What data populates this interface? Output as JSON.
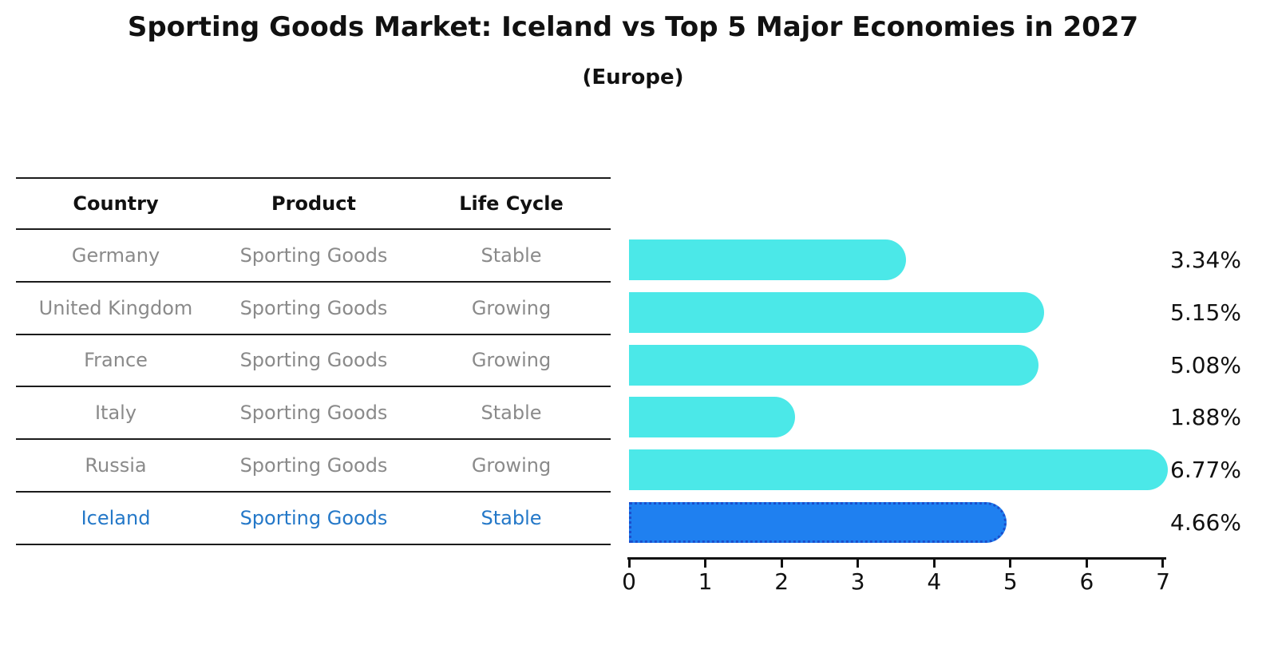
{
  "header": {
    "title": "Sporting Goods Market: Iceland vs Top 5 Major Economies in 2027",
    "subtitle": "(Europe)"
  },
  "table": {
    "headers": {
      "country": "Country",
      "product": "Product",
      "life_cycle": "Life Cycle"
    },
    "rows": [
      {
        "country": "Germany",
        "product": "Sporting Goods",
        "life_cycle": "Stable",
        "share_label": "3.34%",
        "highlight": false
      },
      {
        "country": "United Kingdom",
        "product": "Sporting Goods",
        "life_cycle": "Growing",
        "share_label": "5.15%",
        "highlight": false
      },
      {
        "country": "France",
        "product": "Sporting Goods",
        "life_cycle": "Growing",
        "share_label": "5.08%",
        "highlight": false
      },
      {
        "country": "Italy",
        "product": "Sporting Goods",
        "life_cycle": "Stable",
        "share_label": "1.88%",
        "highlight": false
      },
      {
        "country": "Russia",
        "product": "Sporting Goods",
        "life_cycle": "Growing",
        "share_label": "6.77%",
        "highlight": false
      },
      {
        "country": "Iceland",
        "product": "Sporting Goods",
        "life_cycle": "Stable",
        "share_label": "4.66%",
        "highlight": true
      }
    ]
  },
  "chart_data": {
    "type": "bar",
    "orientation": "horizontal",
    "title": "Sporting Goods Market: Iceland vs Top 5 Major Economies in 2027 (Europe)",
    "categories": [
      "Germany",
      "United Kingdom",
      "France",
      "Italy",
      "Russia",
      "Iceland"
    ],
    "values": [
      3.34,
      5.15,
      5.08,
      1.88,
      6.77,
      4.66
    ],
    "value_labels": [
      "3.34%",
      "5.15%",
      "5.08%",
      "1.88%",
      "6.77%",
      "4.66%"
    ],
    "xlabel": "",
    "ylabel": "",
    "xlim": [
      0,
      7
    ],
    "x_ticks": [
      0,
      1,
      2,
      3,
      4,
      5,
      6,
      7
    ],
    "grid": false,
    "legend": false,
    "highlight_index": 5,
    "bar_color": "#4be8e8",
    "highlight_color": "#1f80f0",
    "highlight_border_color": "#1b4ecc"
  }
}
